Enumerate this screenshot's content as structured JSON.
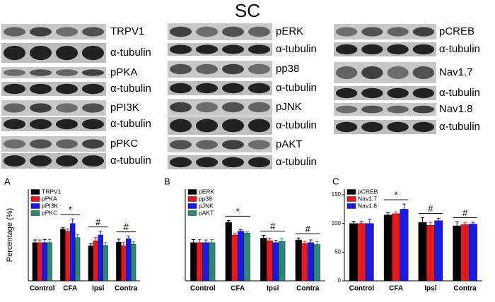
{
  "title": "SC",
  "blots": [
    {
      "labels": [
        "TRPV1",
        "α-tubulin",
        "pPKA",
        "α-tubulin",
        "pPI3K",
        "α-tubulin",
        "pPKC",
        "α-tubulin"
      ]
    },
    {
      "labels": [
        "pERK",
        "α-tubulin",
        "pp38",
        "α-tubulin",
        "pJNK",
        "α-tubulin",
        "pAKT",
        "α-tubulin"
      ]
    },
    {
      "labels": [
        "pCREB",
        "α-tubulin",
        "Nav1.7",
        "α-tubulin",
        "Nav1.8",
        "α-tubulin"
      ]
    }
  ],
  "chart_data": [
    {
      "type": "bar",
      "panel_label": "A",
      "y_label": "Percentage (%)",
      "categories": [
        "Control",
        "CFA",
        "Ipsi",
        "Contra"
      ],
      "ylim": [
        0,
        240
      ],
      "significance": [
        null,
        "*",
        "#",
        "#"
      ],
      "series": [
        {
          "name": "TRPV1",
          "color": "#000000",
          "values": [
            100,
            135,
            92,
            101
          ],
          "errors": [
            7,
            4,
            5,
            8
          ]
        },
        {
          "name": "pPKA",
          "color": "#e8191c",
          "values": [
            100,
            130,
            105,
            92
          ],
          "errors": [
            7,
            6,
            8,
            8
          ]
        },
        {
          "name": "pPI3K",
          "color": "#1a1ae6",
          "values": [
            100,
            150,
            120,
            110
          ],
          "errors": [
            8,
            12,
            10,
            7
          ]
        },
        {
          "name": "pPKC",
          "color": "#2a8a7a",
          "values": [
            100,
            113,
            93,
            96
          ],
          "errors": [
            8,
            8,
            7,
            6
          ]
        }
      ]
    },
    {
      "type": "bar",
      "panel_label": "B",
      "categories": [
        "Control",
        "CFA",
        "Ipsi",
        "Contra"
      ],
      "ylim": [
        0,
        240
      ],
      "significance": [
        null,
        "*",
        "#",
        "#"
      ],
      "series": [
        {
          "name": "pERK",
          "color": "#000000",
          "values": [
            100,
            153,
            112,
            107
          ],
          "errors": [
            8,
            5,
            7,
            5
          ]
        },
        {
          "name": "pp38",
          "color": "#e8191c",
          "values": [
            100,
            120,
            105,
            98
          ],
          "errors": [
            8,
            5,
            6,
            5
          ]
        },
        {
          "name": "pJNK",
          "color": "#1a1ae6",
          "values": [
            100,
            130,
            100,
            100
          ],
          "errors": [
            7,
            4,
            6,
            7
          ]
        },
        {
          "name": "pAKT",
          "color": "#2a8a7a",
          "values": [
            100,
            125,
            103,
            95
          ],
          "errors": [
            8,
            4,
            7,
            8
          ]
        }
      ]
    },
    {
      "type": "bar",
      "panel_label": "C",
      "categories": [
        "Control",
        "CFA",
        "Ipsi",
        "Contra"
      ],
      "ylim": [
        0,
        160
      ],
      "yticks": [
        0,
        50,
        100,
        150
      ],
      "significance": [
        null,
        "*",
        "#",
        "#"
      ],
      "series": [
        {
          "name": "pCREB",
          "color": "#000000",
          "values": [
            100,
            115,
            102,
            96
          ],
          "errors": [
            4,
            4,
            8,
            7
          ]
        },
        {
          "name": "Nav1.7",
          "color": "#e8191c",
          "values": [
            100,
            117,
            97,
            98
          ],
          "errors": [
            4,
            3,
            5,
            4
          ]
        },
        {
          "name": "Nav1.8",
          "color": "#1a1ae6",
          "values": [
            100,
            125,
            105,
            99
          ],
          "errors": [
            7,
            9,
            4,
            3
          ]
        }
      ]
    }
  ]
}
